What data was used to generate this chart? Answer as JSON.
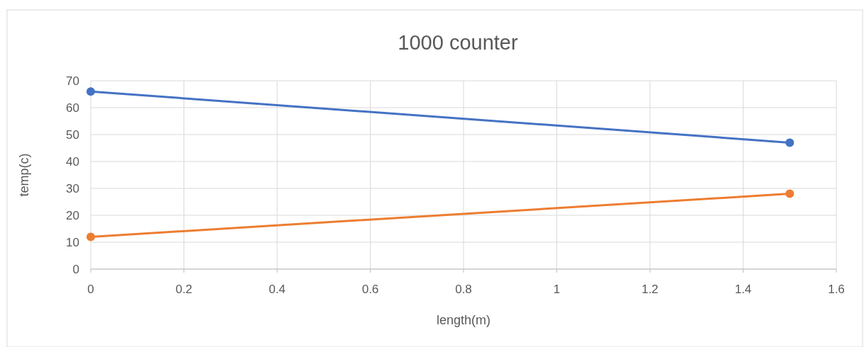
{
  "chart_data": {
    "type": "line",
    "title": "1000 counter",
    "xlabel": "length(m)",
    "ylabel": "temp(c)",
    "xlim": [
      0,
      1.6
    ],
    "xticks": [
      0,
      0.2,
      0.4,
      0.6,
      0.8,
      1,
      1.2,
      1.4,
      1.6
    ],
    "ylim": [
      0,
      70
    ],
    "yticks": [
      0,
      10,
      20,
      30,
      40,
      50,
      60,
      70
    ],
    "grid": true,
    "marker": "circle",
    "line_style": "solid",
    "x": [
      0,
      1.5
    ],
    "series": [
      {
        "color": "#4472c4",
        "values": [
          66,
          47
        ]
      },
      {
        "color": "#ed7d31",
        "values": [
          12,
          28
        ]
      }
    ]
  }
}
